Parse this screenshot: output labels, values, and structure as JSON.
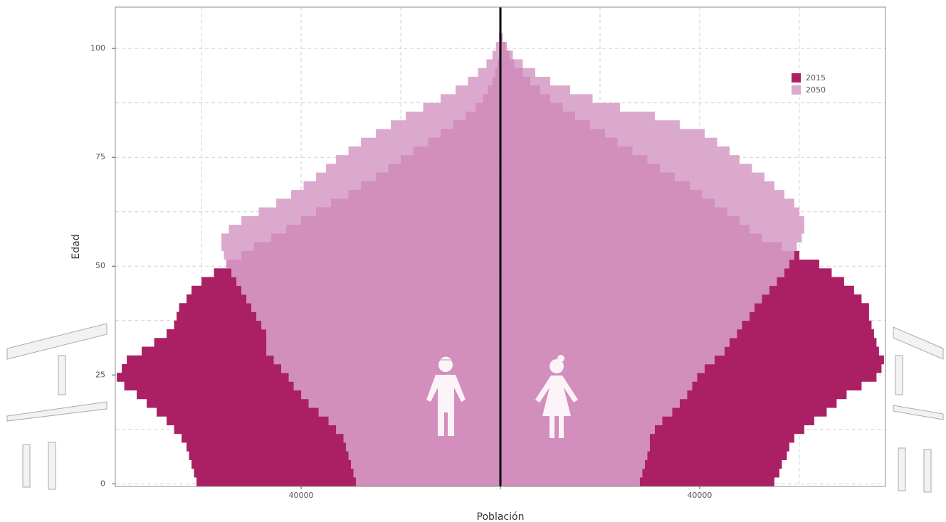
{
  "chart_data": {
    "type": "pyramid",
    "x_label": "Población",
    "y_label": "Edad",
    "ages": [
      0,
      2,
      4,
      6,
      8,
      10,
      12,
      14,
      16,
      18,
      20,
      22,
      24,
      26,
      28,
      30,
      32,
      34,
      36,
      38,
      40,
      42,
      44,
      46,
      48,
      50,
      52,
      54,
      56,
      58,
      60,
      62,
      64,
      66,
      68,
      70,
      72,
      74,
      76,
      78,
      80,
      82,
      84,
      86,
      88,
      90,
      92,
      94,
      96,
      98,
      100,
      102
    ],
    "series": [
      {
        "name": "2015",
        "color": "#ab2065",
        "men": [
          -61000,
          -61500,
          -62000,
          -62500,
          -63000,
          -64000,
          -65500,
          -67000,
          -69000,
          -71000,
          -73000,
          -75500,
          -77000,
          -76000,
          -75000,
          -72000,
          -69500,
          -67000,
          -65500,
          -65000,
          -64500,
          -63000,
          -62000,
          -60000,
          -57500,
          -55000,
          -52000,
          -49500,
          -46000,
          -43000,
          -40000,
          -37000,
          -34000,
          -30500,
          -28000,
          -25000,
          -22500,
          -20000,
          -17500,
          -14500,
          -12000,
          -9500,
          -7000,
          -5000,
          -3500,
          -2500,
          -1600,
          -1000,
          -600,
          -300,
          -100,
          -50
        ],
        "women": [
          55000,
          56000,
          56500,
          57500,
          58000,
          59000,
          61000,
          63000,
          65500,
          67500,
          69500,
          72500,
          75500,
          76500,
          77000,
          76000,
          75500,
          75000,
          74500,
          74000,
          74000,
          72500,
          71000,
          69000,
          66500,
          64000,
          60000,
          56500,
          52500,
          50000,
          48000,
          45500,
          43000,
          40500,
          38000,
          35000,
          32000,
          29500,
          26500,
          23500,
          21000,
          18000,
          15000,
          12500,
          10000,
          8000,
          6000,
          4500,
          2800,
          1800,
          1000,
          300
        ]
      },
      {
        "name": "2050",
        "color": "#d89ec8",
        "men": [
          -29000,
          -29500,
          -30000,
          -30500,
          -31000,
          -31500,
          -33000,
          -34500,
          -36500,
          -38500,
          -40000,
          -41500,
          -42500,
          -44000,
          -45500,
          -47000,
          -47000,
          -47000,
          -48000,
          -49000,
          -50000,
          -51000,
          -52000,
          -53000,
          -54000,
          -55000,
          -55500,
          -56000,
          -56000,
          -54500,
          -52000,
          -48500,
          -45000,
          -42000,
          -39500,
          -37000,
          -35000,
          -33000,
          -30500,
          -28000,
          -25000,
          -22000,
          -19000,
          -15500,
          -12000,
          -9000,
          -6500,
          -4500,
          -2800,
          -1600,
          -900,
          -300
        ],
        "women": [
          28000,
          28500,
          29000,
          29500,
          30000,
          30000,
          31000,
          32500,
          34500,
          36000,
          37500,
          38500,
          39500,
          41000,
          43000,
          45000,
          46000,
          47500,
          48500,
          50000,
          51000,
          52500,
          54000,
          55500,
          57000,
          58000,
          59000,
          59500,
          60500,
          61000,
          61000,
          60000,
          59000,
          57000,
          55000,
          53000,
          50500,
          48000,
          46000,
          43500,
          41000,
          36000,
          31000,
          24000,
          18500,
          14000,
          10000,
          7000,
          4500,
          2500,
          1300,
          500
        ]
      }
    ],
    "xlim": [
      -77300,
      77300
    ],
    "xticks": [
      {
        "value": -40000,
        "label": "40000"
      },
      0,
      40000
    ],
    "x_minor_ticks": [
      -60000,
      -20000,
      20000,
      60000
    ],
    "ylim": [
      -0.6,
      109.5
    ],
    "yticks": [
      0,
      25,
      50,
      75,
      100
    ],
    "y_minor_ticks": [
      12.5,
      37.5,
      62.5,
      87.5
    ],
    "grid": true,
    "legend": "top-right"
  }
}
